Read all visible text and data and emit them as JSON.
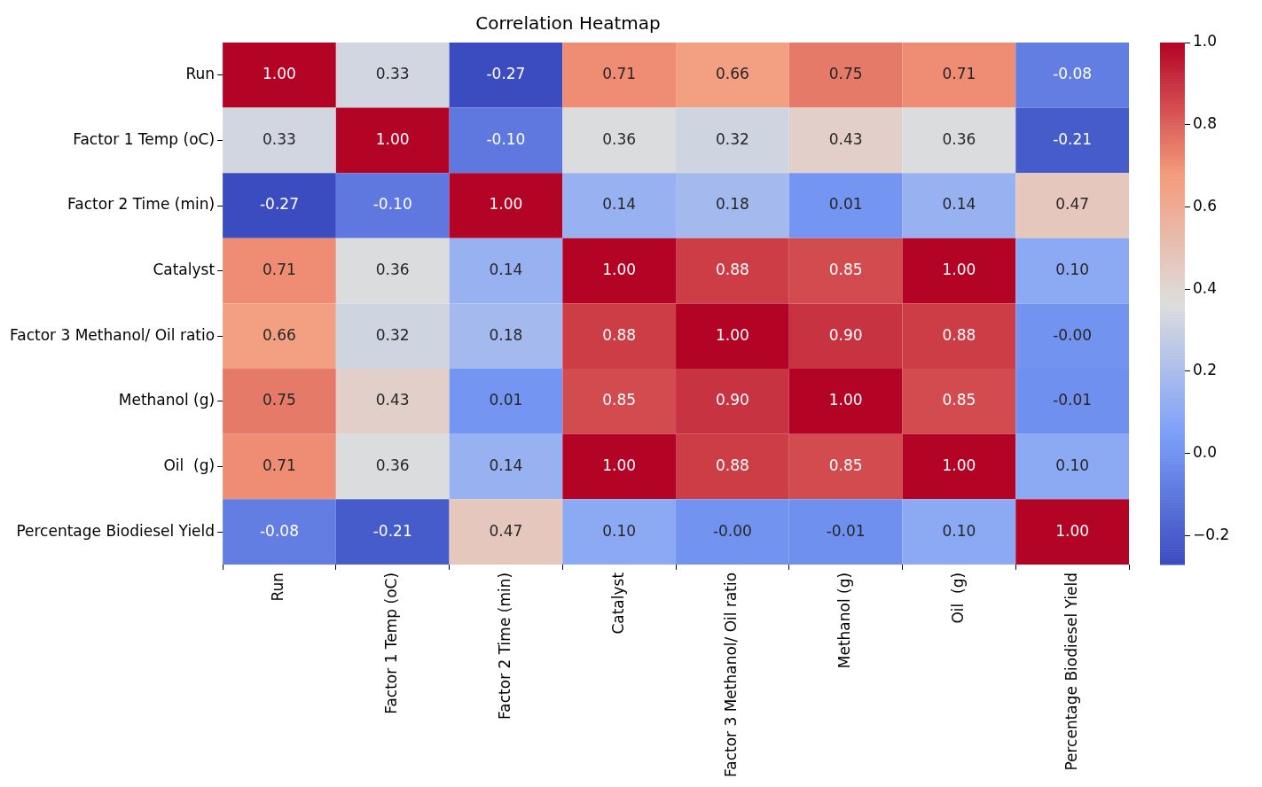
{
  "chart_data": {
    "type": "heatmap",
    "title": "Correlation Heatmap",
    "categories": [
      "Run",
      "Factor 1 Temp (oC)",
      "Factor 2 Time (min)",
      "Catalyst",
      "Factor 3 Methanol/ Oil ratio",
      "Methanol (g)",
      "Oil  (g)",
      "Percentage Biodiesel Yield"
    ],
    "y_categories": [
      "Run",
      "Factor 1 Temp (oC)",
      "Factor 2 Time (min)",
      "Catalyst",
      "Factor 3 Methanol/ Oil ratio",
      "Methanol (g)",
      "Oil  (g)",
      "Percentage Biodiesel Yield"
    ],
    "cells": [
      [
        1.0,
        0.33,
        -0.27,
        0.71,
        0.66,
        0.75,
        0.71,
        -0.08
      ],
      [
        0.33,
        1.0,
        -0.1,
        0.36,
        0.32,
        0.43,
        0.36,
        -0.21
      ],
      [
        -0.27,
        -0.1,
        1.0,
        0.14,
        0.18,
        0.01,
        0.14,
        0.47
      ],
      [
        0.71,
        0.36,
        0.14,
        1.0,
        0.88,
        0.85,
        1.0,
        0.1
      ],
      [
        0.66,
        0.32,
        0.18,
        0.88,
        1.0,
        0.9,
        0.88,
        0.0
      ],
      [
        0.75,
        0.43,
        0.01,
        0.85,
        0.9,
        1.0,
        0.85,
        -0.01
      ],
      [
        0.71,
        0.36,
        0.14,
        1.0,
        0.88,
        0.85,
        1.0,
        0.1
      ],
      [
        -0.08,
        -0.21,
        0.47,
        0.1,
        0.0,
        -0.01,
        0.1,
        1.0
      ]
    ],
    "cell_labels": [
      [
        "1.00",
        "0.33",
        "-0.27",
        "0.71",
        "0.66",
        "0.75",
        "0.71",
        "-0.08"
      ],
      [
        "0.33",
        "1.00",
        "-0.10",
        "0.36",
        "0.32",
        "0.43",
        "0.36",
        "-0.21"
      ],
      [
        "-0.27",
        "-0.10",
        "1.00",
        "0.14",
        "0.18",
        "0.01",
        "0.14",
        "0.47"
      ],
      [
        "0.71",
        "0.36",
        "0.14",
        "1.00",
        "0.88",
        "0.85",
        "1.00",
        "0.10"
      ],
      [
        "0.66",
        "0.32",
        "0.18",
        "0.88",
        "1.00",
        "0.90",
        "0.88",
        "-0.00"
      ],
      [
        "0.75",
        "0.43",
        "0.01",
        "0.85",
        "0.90",
        "1.00",
        "0.85",
        "-0.01"
      ],
      [
        "0.71",
        "0.36",
        "0.14",
        "1.00",
        "0.88",
        "0.85",
        "1.00",
        "0.10"
      ],
      [
        "-0.08",
        "-0.21",
        "0.47",
        "0.10",
        "-0.00",
        "-0.01",
        "0.10",
        "1.00"
      ]
    ],
    "clim": [
      -0.27,
      1.0
    ],
    "cticks": [
      {
        "value": -0.2,
        "label": "−0.2"
      },
      {
        "value": 0,
        "label": "0.0"
      },
      {
        "value": 0.2,
        "label": "0.2"
      },
      {
        "value": 0.4,
        "label": "0.4"
      },
      {
        "value": 0.6,
        "label": "0.6"
      },
      {
        "value": 0.8,
        "label": "0.8"
      },
      {
        "value": 1.0,
        "label": "1.0"
      }
    ]
  }
}
